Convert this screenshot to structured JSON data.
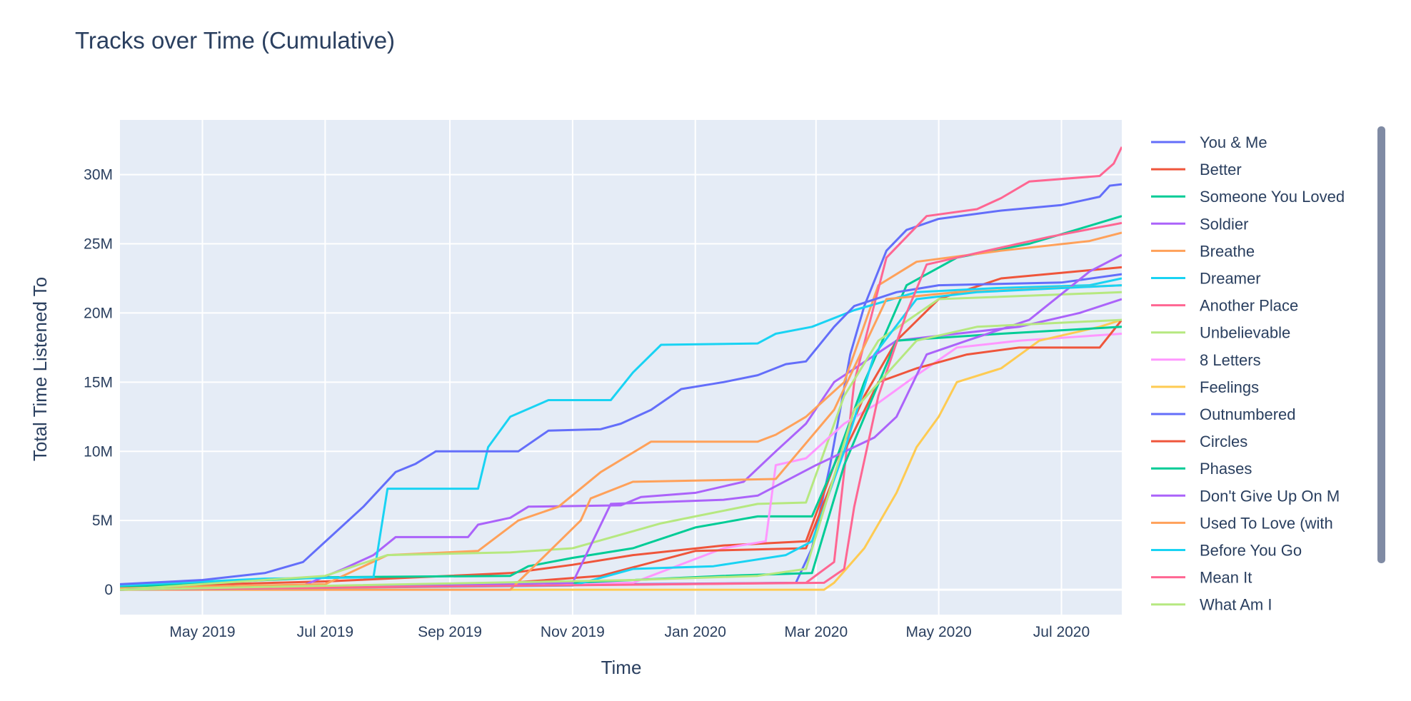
{
  "chart_data": {
    "type": "line",
    "title": "Tracks over Time (Cumulative)",
    "xlabel": "Time",
    "ylabel": "Total Time Listened To",
    "xlim": [
      "2019-03-21",
      "2020-07-31"
    ],
    "ylim": [
      -1800000,
      33950000
    ],
    "x_ticks": [
      {
        "date": "2019-05-01",
        "label": "May 2019"
      },
      {
        "date": "2019-07-01",
        "label": "Jul 2019"
      },
      {
        "date": "2019-09-01",
        "label": "Sep 2019"
      },
      {
        "date": "2019-11-01",
        "label": "Nov 2019"
      },
      {
        "date": "2020-01-01",
        "label": "Jan 2020"
      },
      {
        "date": "2020-03-01",
        "label": "Mar 2020"
      },
      {
        "date": "2020-05-01",
        "label": "May 2020"
      },
      {
        "date": "2020-07-01",
        "label": "Jul 2020"
      }
    ],
    "y_ticks": [
      {
        "value": 0,
        "label": "0"
      },
      {
        "value": 5000000,
        "label": "5M"
      },
      {
        "value": 10000000,
        "label": "10M"
      },
      {
        "value": 15000000,
        "label": "15M"
      },
      {
        "value": 20000000,
        "label": "20M"
      },
      {
        "value": 25000000,
        "label": "25M"
      },
      {
        "value": 30000000,
        "label": "30M"
      }
    ],
    "grid": true,
    "legend_position": "right",
    "value_unit": "M",
    "series": [
      {
        "name": "You & Me",
        "color": "#636efa",
        "points": [
          [
            "2019-03-21",
            0.1
          ],
          [
            "2020-02-20",
            0.5
          ],
          [
            "2020-02-28",
            3
          ],
          [
            "2020-03-08",
            9
          ],
          [
            "2020-03-18",
            17
          ],
          [
            "2020-03-25",
            20.5
          ],
          [
            "2020-04-05",
            24.5
          ],
          [
            "2020-04-15",
            26
          ],
          [
            "2020-05-01",
            26.8
          ],
          [
            "2020-06-01",
            27.4
          ],
          [
            "2020-07-01",
            27.8
          ],
          [
            "2020-07-20",
            28.4
          ],
          [
            "2020-07-25",
            29.2
          ],
          [
            "2020-07-31",
            29.3
          ]
        ]
      },
      {
        "name": "Better",
        "color": "#EF553B",
        "points": [
          [
            "2019-03-21",
            0.2
          ],
          [
            "2019-07-01",
            0.6
          ],
          [
            "2019-10-01",
            1.2
          ],
          [
            "2019-11-01",
            1.8
          ],
          [
            "2019-12-01",
            2.5
          ],
          [
            "2020-01-15",
            3.2
          ],
          [
            "2020-02-25",
            3.5
          ],
          [
            "2020-03-10",
            9
          ],
          [
            "2020-03-25",
            14
          ],
          [
            "2020-04-10",
            18
          ],
          [
            "2020-05-01",
            21
          ],
          [
            "2020-06-01",
            22.5
          ],
          [
            "2020-07-31",
            23.3
          ]
        ]
      },
      {
        "name": "Someone You Loved",
        "color": "#00cc96",
        "points": [
          [
            "2019-03-21",
            0.2
          ],
          [
            "2019-07-01",
            0.9
          ],
          [
            "2019-10-01",
            1
          ],
          [
            "2019-10-10",
            1.7
          ],
          [
            "2019-11-01",
            2.3
          ],
          [
            "2019-12-01",
            3
          ],
          [
            "2020-01-01",
            4.5
          ],
          [
            "2020-02-01",
            5.3
          ],
          [
            "2020-02-28",
            5.3
          ],
          [
            "2020-03-10",
            9
          ],
          [
            "2020-03-25",
            15
          ],
          [
            "2020-04-15",
            22
          ],
          [
            "2020-05-10",
            24
          ],
          [
            "2020-06-15",
            25
          ],
          [
            "2020-07-15",
            26.3
          ],
          [
            "2020-07-31",
            27
          ]
        ]
      },
      {
        "name": "Soldier",
        "color": "#ab63fa",
        "points": [
          [
            "2019-03-21",
            0.1
          ],
          [
            "2019-06-20",
            0.3
          ],
          [
            "2019-07-10",
            1.5
          ],
          [
            "2019-07-25",
            2.5
          ],
          [
            "2019-08-05",
            3.8
          ],
          [
            "2019-09-10",
            3.8
          ],
          [
            "2019-09-15",
            4.7
          ],
          [
            "2019-10-01",
            5.2
          ],
          [
            "2019-10-10",
            6
          ],
          [
            "2019-11-25",
            6.1
          ],
          [
            "2019-12-05",
            6.7
          ],
          [
            "2020-01-01",
            7
          ],
          [
            "2020-01-25",
            7.8
          ],
          [
            "2020-02-10",
            10
          ],
          [
            "2020-02-25",
            12
          ],
          [
            "2020-03-10",
            15
          ],
          [
            "2020-04-10",
            18
          ],
          [
            "2020-05-10",
            18.5
          ],
          [
            "2020-06-10",
            19
          ],
          [
            "2020-07-10",
            20
          ],
          [
            "2020-07-31",
            21
          ]
        ]
      },
      {
        "name": "Breathe",
        "color": "#FFA15A",
        "points": [
          [
            "2019-03-21",
            0.1
          ],
          [
            "2019-07-01",
            0.4
          ],
          [
            "2019-08-01",
            2.5
          ],
          [
            "2019-09-15",
            2.8
          ],
          [
            "2019-10-05",
            5
          ],
          [
            "2019-10-15",
            5.5
          ],
          [
            "2019-10-25",
            6
          ],
          [
            "2019-11-15",
            8.5
          ],
          [
            "2019-12-10",
            10.7
          ],
          [
            "2020-02-01",
            10.7
          ],
          [
            "2020-02-10",
            11.2
          ],
          [
            "2020-02-25",
            12.5
          ],
          [
            "2020-03-15",
            15
          ],
          [
            "2020-04-01",
            22
          ],
          [
            "2020-04-20",
            23.7
          ],
          [
            "2020-06-01",
            24.5
          ],
          [
            "2020-07-15",
            25.2
          ],
          [
            "2020-07-31",
            25.8
          ]
        ]
      },
      {
        "name": "Dreamer",
        "color": "#19d3f3",
        "points": [
          [
            "2019-03-21",
            0.3
          ],
          [
            "2019-06-01",
            0.8
          ],
          [
            "2019-07-25",
            0.9
          ],
          [
            "2019-08-01",
            7.3
          ],
          [
            "2019-09-15",
            7.3
          ],
          [
            "2019-09-20",
            10.3
          ],
          [
            "2019-10-01",
            12.5
          ],
          [
            "2019-10-20",
            13.7
          ],
          [
            "2019-11-20",
            13.7
          ],
          [
            "2019-12-01",
            15.7
          ],
          [
            "2019-12-15",
            17.7
          ],
          [
            "2020-02-01",
            17.8
          ],
          [
            "2020-02-10",
            18.5
          ],
          [
            "2020-02-28",
            19
          ],
          [
            "2020-03-20",
            20.2
          ],
          [
            "2020-04-20",
            21.5
          ],
          [
            "2020-05-30",
            21.8
          ],
          [
            "2020-07-15",
            22
          ],
          [
            "2020-07-31",
            22.5
          ]
        ]
      },
      {
        "name": "Another Place",
        "color": "#FF6692",
        "points": [
          [
            "2019-03-21",
            0
          ],
          [
            "2020-02-25",
            0.5
          ],
          [
            "2020-03-10",
            2
          ],
          [
            "2020-03-20",
            15
          ],
          [
            "2020-04-05",
            24
          ],
          [
            "2020-04-25",
            27
          ],
          [
            "2020-05-20",
            27.5
          ],
          [
            "2020-06-01",
            28.3
          ],
          [
            "2020-06-15",
            29.5
          ],
          [
            "2020-07-20",
            29.9
          ],
          [
            "2020-07-27",
            30.8
          ],
          [
            "2020-07-31",
            32
          ]
        ]
      },
      {
        "name": "Unbelievable",
        "color": "#B6E880",
        "points": [
          [
            "2019-03-21",
            0
          ],
          [
            "2019-07-01",
            1
          ],
          [
            "2019-08-01",
            2.5
          ],
          [
            "2019-10-01",
            2.7
          ],
          [
            "2019-11-01",
            3
          ],
          [
            "2019-12-15",
            4.8
          ],
          [
            "2020-01-01",
            5.3
          ],
          [
            "2020-02-01",
            6.2
          ],
          [
            "2020-02-25",
            6.3
          ],
          [
            "2020-03-15",
            14
          ],
          [
            "2020-04-01",
            18
          ],
          [
            "2020-05-01",
            21
          ],
          [
            "2020-07-31",
            21.5
          ]
        ]
      },
      {
        "name": "8 Letters",
        "color": "#FF97FF",
        "points": [
          [
            "2019-03-21",
            0
          ],
          [
            "2019-12-01",
            0.5
          ],
          [
            "2020-01-15",
            3
          ],
          [
            "2020-02-05",
            3.5
          ],
          [
            "2020-02-10",
            9
          ],
          [
            "2020-02-25",
            9.5
          ],
          [
            "2020-03-15",
            12
          ],
          [
            "2020-04-01",
            13.5
          ],
          [
            "2020-04-20",
            15.5
          ],
          [
            "2020-05-10",
            17.5
          ],
          [
            "2020-06-10",
            18
          ],
          [
            "2020-07-31",
            18.5
          ]
        ]
      },
      {
        "name": "Feelings",
        "color": "#FECB52",
        "points": [
          [
            "2019-03-21",
            0
          ],
          [
            "2020-03-05",
            0
          ],
          [
            "2020-03-10",
            0.5
          ],
          [
            "2020-03-25",
            3
          ],
          [
            "2020-04-10",
            7
          ],
          [
            "2020-04-20",
            10.3
          ],
          [
            "2020-05-01",
            12.5
          ],
          [
            "2020-05-10",
            15
          ],
          [
            "2020-06-01",
            16
          ],
          [
            "2020-06-20",
            18
          ],
          [
            "2020-07-20",
            19
          ],
          [
            "2020-07-31",
            19.5
          ]
        ]
      },
      {
        "name": "Outnumbered",
        "color": "#636efa",
        "points": [
          [
            "2019-03-21",
            0.4
          ],
          [
            "2019-05-01",
            0.7
          ],
          [
            "2019-06-01",
            1.2
          ],
          [
            "2019-06-20",
            2
          ],
          [
            "2019-07-05",
            4
          ],
          [
            "2019-07-20",
            6
          ],
          [
            "2019-08-05",
            8.5
          ],
          [
            "2019-08-15",
            9.1
          ],
          [
            "2019-08-25",
            10
          ],
          [
            "2019-10-05",
            10
          ],
          [
            "2019-10-20",
            11.5
          ],
          [
            "2019-11-15",
            11.6
          ],
          [
            "2019-11-25",
            12
          ],
          [
            "2019-12-10",
            13
          ],
          [
            "2019-12-25",
            14.5
          ],
          [
            "2020-01-15",
            15
          ],
          [
            "2020-02-01",
            15.5
          ],
          [
            "2020-02-15",
            16.3
          ],
          [
            "2020-02-25",
            16.5
          ],
          [
            "2020-03-10",
            19
          ],
          [
            "2020-03-20",
            20.5
          ],
          [
            "2020-04-10",
            21.5
          ],
          [
            "2020-05-01",
            22
          ],
          [
            "2020-07-01",
            22.2
          ],
          [
            "2020-07-31",
            22.8
          ]
        ]
      },
      {
        "name": "Circles",
        "color": "#EF553B",
        "points": [
          [
            "2019-03-21",
            0
          ],
          [
            "2019-10-01",
            0.5
          ],
          [
            "2019-11-15",
            1
          ],
          [
            "2020-01-01",
            2.8
          ],
          [
            "2020-02-25",
            3
          ],
          [
            "2020-03-15",
            10
          ],
          [
            "2020-04-01",
            15
          ],
          [
            "2020-04-20",
            16
          ],
          [
            "2020-05-15",
            17
          ],
          [
            "2020-06-10",
            17.5
          ],
          [
            "2020-07-20",
            17.5
          ],
          [
            "2020-07-31",
            19.5
          ]
        ]
      },
      {
        "name": "Phases",
        "color": "#00cc96",
        "points": [
          [
            "2019-03-21",
            0
          ],
          [
            "2019-11-01",
            0.5
          ],
          [
            "2020-01-15",
            1
          ],
          [
            "2020-02-28",
            1.2
          ],
          [
            "2020-03-15",
            9
          ],
          [
            "2020-04-10",
            18
          ],
          [
            "2020-06-01",
            18.5
          ],
          [
            "2020-07-31",
            19
          ]
        ]
      },
      {
        "name": "Don't Give Up On M",
        "color": "#ab63fa",
        "points": [
          [
            "2019-03-21",
            0
          ],
          [
            "2019-11-01",
            0.5
          ],
          [
            "2019-11-20",
            6.2
          ],
          [
            "2020-01-15",
            6.5
          ],
          [
            "2020-02-01",
            6.8
          ],
          [
            "2020-03-01",
            9
          ],
          [
            "2020-03-30",
            11
          ],
          [
            "2020-04-10",
            12.5
          ],
          [
            "2020-04-25",
            17
          ],
          [
            "2020-05-15",
            18
          ],
          [
            "2020-06-15",
            19.5
          ],
          [
            "2020-07-15",
            23
          ],
          [
            "2020-07-31",
            24.2
          ]
        ]
      },
      {
        "name": "Used To Love (with",
        "color": "#FFA15A",
        "points": [
          [
            "2019-03-21",
            0
          ],
          [
            "2019-10-01",
            0
          ],
          [
            "2019-11-05",
            5
          ],
          [
            "2019-11-10",
            6.6
          ],
          [
            "2019-12-01",
            7.8
          ],
          [
            "2020-02-10",
            8
          ],
          [
            "2020-03-10",
            13
          ],
          [
            "2020-04-05",
            21
          ],
          [
            "2020-05-10",
            21.5
          ],
          [
            "2020-07-31",
            22
          ]
        ]
      },
      {
        "name": "Before You Go",
        "color": "#19d3f3",
        "points": [
          [
            "2019-03-21",
            0
          ],
          [
            "2019-11-01",
            0.3
          ],
          [
            "2019-12-01",
            1.5
          ],
          [
            "2020-01-10",
            1.7
          ],
          [
            "2020-02-15",
            2.5
          ],
          [
            "2020-02-28",
            3.5
          ],
          [
            "2020-03-15",
            10
          ],
          [
            "2020-03-30",
            17
          ],
          [
            "2020-04-20",
            21
          ],
          [
            "2020-05-20",
            21.5
          ],
          [
            "2020-07-31",
            22
          ]
        ]
      },
      {
        "name": "Mean It",
        "color": "#FF6692",
        "points": [
          [
            "2019-03-21",
            0
          ],
          [
            "2020-03-05",
            0.5
          ],
          [
            "2020-03-15",
            1.5
          ],
          [
            "2020-03-20",
            6
          ],
          [
            "2020-04-01",
            14
          ],
          [
            "2020-04-15",
            20
          ],
          [
            "2020-04-25",
            23.5
          ],
          [
            "2020-05-25",
            24.5
          ],
          [
            "2020-06-25",
            25.5
          ],
          [
            "2020-07-31",
            26.5
          ]
        ]
      },
      {
        "name": "What Am I",
        "color": "#B6E880",
        "points": [
          [
            "2019-03-21",
            0
          ],
          [
            "2019-12-01",
            0.7
          ],
          [
            "2020-02-01",
            1
          ],
          [
            "2020-02-25",
            1.5
          ],
          [
            "2020-03-20",
            13
          ],
          [
            "2020-04-20",
            18
          ],
          [
            "2020-05-20",
            19
          ],
          [
            "2020-07-31",
            19.5
          ]
        ]
      }
    ]
  }
}
